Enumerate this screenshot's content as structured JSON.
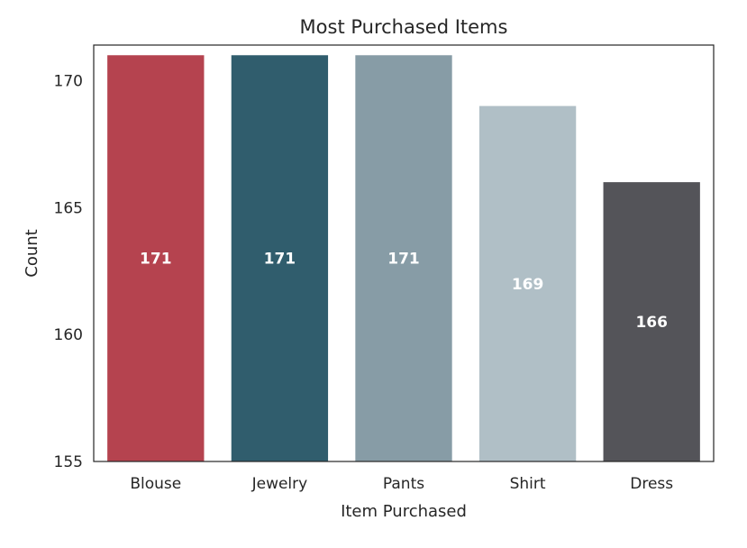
{
  "chart_data": {
    "type": "bar",
    "title": "Most Purchased Items",
    "xlabel": "Item Purchased",
    "ylabel": "Count",
    "categories": [
      "Blouse",
      "Jewelry",
      "Pants",
      "Shirt",
      "Dress"
    ],
    "values": [
      171,
      171,
      171,
      169,
      166
    ],
    "data_labels": [
      "171",
      "171",
      "171",
      "169",
      "166"
    ],
    "colors": [
      "#b5434f",
      "#305d6d",
      "#879ca6",
      "#b0bfc6",
      "#545459"
    ],
    "ylim": [
      155,
      171.4
    ],
    "yticks": [
      155,
      160,
      165,
      170
    ],
    "ytick_labels": [
      "155",
      "160",
      "165",
      "170"
    ],
    "grid": false,
    "legend": "none"
  }
}
